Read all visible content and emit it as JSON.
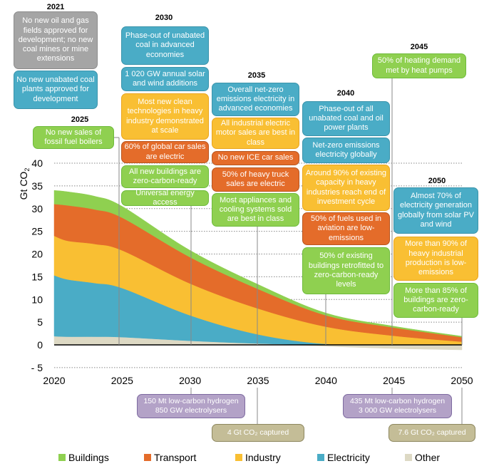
{
  "chart_data": {
    "type": "area",
    "stacked": true,
    "ylabel": "Gt CO2",
    "ylim": [
      -5,
      40
    ],
    "yticks": [
      "40",
      "35",
      "30",
      "25",
      "20",
      "15",
      "10",
      "5",
      "0",
      "- 5"
    ],
    "ytick_values": [
      40,
      35,
      30,
      25,
      20,
      15,
      10,
      5,
      0,
      -5
    ],
    "xticks": [
      "2020",
      "2025",
      "2030",
      "2035",
      "2040",
      "2045",
      "2050"
    ],
    "xlim": [
      2020,
      2050
    ],
    "grid": "horizontal dotted",
    "legend_position": "bottom",
    "x": [
      2020,
      2021,
      2023,
      2025,
      2030,
      2035,
      2040,
      2045,
      2050
    ],
    "series": [
      {
        "name": "Other",
        "color": "#ddd9c4",
        "values": [
          1.9,
          1.8,
          1.8,
          1.7,
          0.9,
          0.3,
          -0.3,
          -0.8,
          -1.1
        ]
      },
      {
        "name": "Electricity",
        "color": "#4aacc6",
        "values": [
          13.4,
          12.6,
          11.8,
          10.8,
          5.6,
          2.0,
          0.2,
          0.0,
          0.0
        ]
      },
      {
        "name": "Industry",
        "color": "#f9bf33",
        "values": [
          8.7,
          8.5,
          8.6,
          8.3,
          7.0,
          5.7,
          3.8,
          2.0,
          0.7
        ]
      },
      {
        "name": "Transport",
        "color": "#e46c2a",
        "values": [
          7.0,
          7.8,
          7.6,
          7.2,
          5.8,
          4.3,
          2.5,
          1.8,
          1.0
        ]
      },
      {
        "name": "Buildings",
        "color": "#8fd050",
        "values": [
          3.0,
          3.0,
          2.9,
          2.5,
          1.5,
          1.0,
          0.5,
          0.3,
          0.2
        ]
      }
    ],
    "legend": [
      {
        "label": "Buildings",
        "color": "#8fd050"
      },
      {
        "label": "Transport",
        "color": "#e46c2a"
      },
      {
        "label": "Industry",
        "color": "#f9bf33"
      },
      {
        "label": "Electricity",
        "color": "#4aacc6"
      },
      {
        "label": "Other",
        "color": "#ddd9c4"
      }
    ],
    "milestones": [
      {
        "year": "2021",
        "items": [
          {
            "text": "No new oil and gas fields approved for development; no new coal mines or mine extensions",
            "category": "gray"
          },
          {
            "text": "No new unabated coal plants approved for development",
            "category": "blue"
          }
        ]
      },
      {
        "year": "2025",
        "items": [
          {
            "text": "No new sales of fossil fuel boilers",
            "category": "green"
          }
        ]
      },
      {
        "year": "2030",
        "items": [
          {
            "text": "Phase-out of unabated coal in advanced economies",
            "category": "blue"
          },
          {
            "text": "1 020 GW annual solar and wind additions",
            "category": "blue"
          },
          {
            "text": "Most new clean technologies in heavy industry demonstrated at scale",
            "category": "yellow"
          },
          {
            "text": "60% of global car sales are electric",
            "category": "orange"
          },
          {
            "text": "All new buildings are zero-carbon-ready",
            "category": "green"
          },
          {
            "text": "Universal energy access",
            "category": "green"
          }
        ]
      },
      {
        "year": "2035",
        "items": [
          {
            "text": "Overall net-zero emissions electricity in advanced economies",
            "category": "blue"
          },
          {
            "text": "All industrial electric motor sales are best in class",
            "category": "yellow"
          },
          {
            "text": "No new ICE car sales",
            "category": "orange"
          },
          {
            "text": "50% of heavy truck sales are electric",
            "category": "orange"
          },
          {
            "text": "Most appliances and cooling systems sold are best in class",
            "category": "green"
          }
        ]
      },
      {
        "year": "2040",
        "items": [
          {
            "text": "Phase-out of all unabated coal and oil power plants",
            "category": "blue"
          },
          {
            "text": "Net-zero emissions electricity globally",
            "category": "blue"
          },
          {
            "text": "Around 90% of existing capacity in heavy industries reach end of investment cycle",
            "category": "yellow"
          },
          {
            "text": "50% of fuels used in aviation are low-emissions",
            "category": "orange"
          },
          {
            "text": "50% of existing buildings retrofitted to zero-carbon-ready levels",
            "category": "green"
          }
        ]
      },
      {
        "year": "2045",
        "items": [
          {
            "text": "50% of heating demand met by heat pumps",
            "category": "green"
          }
        ]
      },
      {
        "year": "2050",
        "items": [
          {
            "text": "Almost 70% of electricity generation globally from solar PV and wind",
            "category": "blue"
          },
          {
            "text": "More than 90% of heavy industrial production is low-emissions",
            "category": "yellow"
          },
          {
            "text": "More than 85% of buildings are zero-carbon-ready",
            "category": "green"
          }
        ]
      }
    ],
    "below_axis": [
      {
        "year": "2030",
        "line1": "150 Mt low-carbon hydrogen",
        "line2": "850 GW electrolysers",
        "category": "purple"
      },
      {
        "year": "2035",
        "line1": "4 Gt CO₂ captured",
        "category": "olive"
      },
      {
        "year": "2045",
        "line1": "435 Mt low-carbon hydrogen",
        "line2": "3 000 GW electrolysers",
        "category": "purple"
      },
      {
        "year": "2050",
        "line1": "7.6 Gt CO₂ captured",
        "category": "olive"
      }
    ]
  }
}
